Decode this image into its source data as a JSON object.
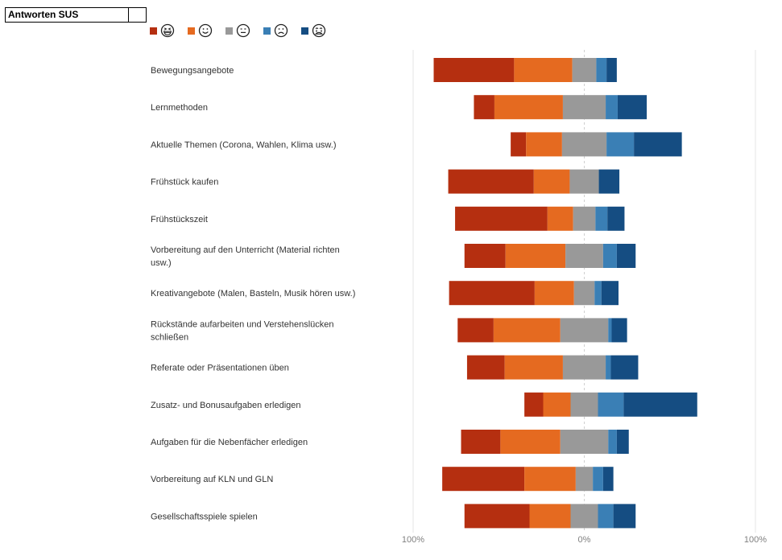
{
  "header": {
    "title": "Antworten SUS"
  },
  "legend": [
    {
      "icon": "grinning-squint-face-icon",
      "color": "#b52f10"
    },
    {
      "icon": "smiling-face-icon",
      "color": "#e56a20"
    },
    {
      "icon": "neutral-face-icon",
      "color": "#999999"
    },
    {
      "icon": "frowning-face-icon",
      "color": "#3a7fb5"
    },
    {
      "icon": "crying-face-icon",
      "color": "#154d82"
    }
  ],
  "chart_data": {
    "type": "bar",
    "orientation": "horizontal",
    "stacked": "diverging",
    "x_ticks": [
      "100%",
      "0%",
      "100%"
    ],
    "xlim": [
      -100,
      100
    ],
    "grid": false,
    "legend_position": "top-left",
    "categories": [
      [
        "Bewegungsangebote"
      ],
      [
        "Lernmethoden"
      ],
      [
        "Aktuelle Themen (Corona, Wahlen, Klima usw.)"
      ],
      [
        "Frühstück kaufen"
      ],
      [
        "Frühstückszeit"
      ],
      [
        "Vorbereitung auf den Unterricht (Material richten",
        "usw.)"
      ],
      [
        "Kreativangebote (Malen, Basteln, Musik hören usw.)"
      ],
      [
        "Rückstände aufarbeiten und Verstehenslücken",
        "schließen"
      ],
      [
        "Referate oder Präsentationen üben"
      ],
      [
        "Zusatz- und Bonusaufgaben erledigen"
      ],
      [
        "Aufgaben für die Nebenfächer erledigen"
      ],
      [
        "Vorbereitung auf KLN und GLN"
      ],
      [
        "Gesellschaftsspiele spielen"
      ]
    ],
    "series": [
      {
        "values": [
          47,
          12,
          9,
          50,
          54,
          24,
          50,
          21,
          22,
          11,
          23,
          48,
          38
        ]
      },
      {
        "values": [
          34,
          40,
          21,
          21,
          15,
          35,
          23,
          39,
          34,
          16,
          35,
          30,
          24
        ]
      },
      {
        "values": [
          14,
          25,
          26,
          17,
          13,
          22,
          12,
          28,
          25,
          16,
          28,
          10,
          16
        ]
      },
      {
        "values": [
          6,
          7,
          16,
          0,
          7,
          8,
          4,
          2,
          3,
          15,
          5,
          6,
          9
        ]
      },
      {
        "values": [
          6,
          17,
          28,
          12,
          10,
          11,
          10,
          9,
          16,
          43,
          7,
          6,
          13
        ]
      }
    ]
  }
}
